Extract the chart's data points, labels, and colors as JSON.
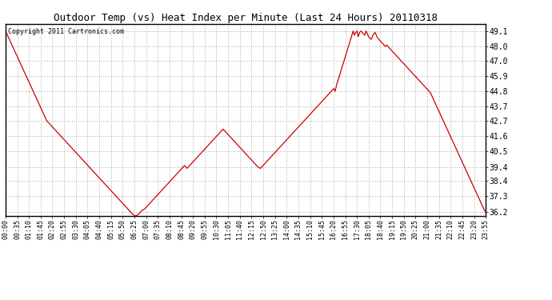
{
  "title": "Outdoor Temp (vs) Heat Index per Minute (Last 24 Hours) 20110318",
  "copyright_text": "Copyright 2011 Cartronics.com",
  "line_color": "#cc0000",
  "background_color": "#ffffff",
  "grid_color": "#aaaaaa",
  "yticks": [
    36.2,
    37.3,
    38.4,
    39.4,
    40.5,
    41.6,
    42.7,
    43.7,
    44.8,
    45.9,
    47.0,
    48.0,
    49.1
  ],
  "xtick_labels": [
    "00:00",
    "00:35",
    "01:10",
    "01:45",
    "02:20",
    "02:55",
    "03:30",
    "04:05",
    "04:40",
    "05:15",
    "05:50",
    "06:25",
    "07:00",
    "07:35",
    "08:10",
    "08:45",
    "09:20",
    "09:55",
    "10:30",
    "11:05",
    "11:40",
    "12:15",
    "12:50",
    "13:25",
    "14:00",
    "14:35",
    "15:10",
    "15:45",
    "16:20",
    "16:55",
    "17:30",
    "18:05",
    "18:40",
    "19:15",
    "19:50",
    "20:25",
    "21:00",
    "21:35",
    "22:10",
    "22:45",
    "23:20",
    "23:55"
  ],
  "ymin": 35.9,
  "ymax": 49.6,
  "data_points": [
    49.1,
    48.9,
    48.7,
    48.5,
    48.3,
    48.1,
    47.9,
    47.7,
    47.5,
    47.3,
    47.1,
    46.9,
    46.7,
    46.5,
    46.3,
    46.1,
    45.9,
    45.7,
    45.5,
    45.3,
    45.1,
    44.9,
    44.7,
    44.5,
    44.3,
    44.1,
    43.9,
    43.7,
    43.5,
    43.3,
    43.1,
    42.9,
    42.7,
    42.6,
    42.5,
    42.4,
    42.3,
    42.2,
    42.1,
    42.0,
    41.9,
    41.8,
    41.7,
    41.6,
    41.5,
    41.4,
    41.3,
    41.2,
    41.1,
    41.0,
    40.9,
    40.8,
    40.7,
    40.6,
    40.5,
    40.4,
    40.3,
    40.2,
    40.1,
    40.0,
    39.9,
    39.8,
    39.7,
    39.6,
    39.5,
    39.4,
    39.3,
    39.2,
    39.1,
    39.0,
    38.9,
    38.8,
    38.7,
    38.6,
    38.5,
    38.4,
    38.3,
    38.2,
    38.1,
    38.0,
    37.9,
    37.8,
    37.7,
    37.6,
    37.5,
    37.4,
    37.3,
    37.2,
    37.1,
    37.0,
    36.9,
    36.8,
    36.7,
    36.6,
    36.5,
    36.4,
    36.3,
    36.2,
    36.1,
    36.0,
    35.95,
    35.9,
    35.95,
    36.0,
    36.1,
    36.2,
    36.3,
    36.35,
    36.4,
    36.5,
    36.6,
    36.7,
    36.8,
    36.9,
    37.0,
    37.1,
    37.2,
    37.3,
    37.4,
    37.5,
    37.6,
    37.7,
    37.8,
    37.9,
    38.0,
    38.1,
    38.2,
    38.3,
    38.4,
    38.5,
    38.6,
    38.7,
    38.8,
    38.9,
    39.0,
    39.1,
    39.2,
    39.3,
    39.4,
    39.5,
    39.4,
    39.3,
    39.4,
    39.5,
    39.6,
    39.7,
    39.8,
    39.9,
    40.0,
    40.1,
    40.2,
    40.3,
    40.4,
    40.5,
    40.6,
    40.7,
    40.8,
    40.9,
    41.0,
    41.1,
    41.2,
    41.3,
    41.4,
    41.5,
    41.6,
    41.7,
    41.8,
    41.9,
    42.0,
    42.1,
    42.0,
    41.9,
    41.8,
    41.7,
    41.6,
    41.5,
    41.4,
    41.3,
    41.2,
    41.1,
    41.0,
    40.9,
    40.8,
    40.7,
    40.6,
    40.5,
    40.4,
    40.3,
    40.2,
    40.1,
    40.0,
    39.9,
    39.8,
    39.7,
    39.6,
    39.5,
    39.4,
    39.35,
    39.3,
    39.4,
    39.5,
    39.6,
    39.7,
    39.8,
    39.9,
    40.0,
    40.1,
    40.2,
    40.3,
    40.4,
    40.5,
    40.6,
    40.7,
    40.8,
    40.9,
    41.0,
    41.1,
    41.2,
    41.3,
    41.4,
    41.5,
    41.6,
    41.7,
    41.8,
    41.9,
    42.0,
    42.1,
    42.2,
    42.3,
    42.4,
    42.5,
    42.6,
    42.7,
    42.8,
    42.9,
    43.0,
    43.1,
    43.2,
    43.3,
    43.4,
    43.5,
    43.6,
    43.7,
    43.8,
    43.9,
    44.0,
    44.1,
    44.2,
    44.3,
    44.4,
    44.5,
    44.6,
    44.7,
    44.8,
    44.9,
    45.0,
    44.8,
    45.2,
    45.5,
    45.8,
    46.1,
    46.4,
    46.7,
    47.0,
    47.3,
    47.6,
    47.9,
    48.2,
    48.5,
    48.8,
    49.1,
    48.8,
    49.0,
    49.1,
    48.7,
    49.0,
    49.1,
    49.0,
    48.9,
    48.8,
    49.1,
    48.9,
    48.7,
    48.6,
    48.5,
    48.7,
    48.9,
    49.0,
    48.8,
    48.6,
    48.5,
    48.4,
    48.3,
    48.2,
    48.1,
    48.0,
    48.1,
    48.0,
    47.9,
    47.8,
    47.7,
    47.6,
    47.5,
    47.4,
    47.3,
    47.2,
    47.1,
    47.0,
    46.9,
    46.8,
    46.7,
    46.6,
    46.5,
    46.4,
    46.3,
    46.2,
    46.1,
    46.0,
    45.9,
    45.8,
    45.7,
    45.6,
    45.5,
    45.4,
    45.3,
    45.2,
    45.1,
    45.0,
    44.9,
    44.8,
    44.7,
    44.5,
    44.3,
    44.1,
    43.9,
    43.7,
    43.5,
    43.3,
    43.1,
    42.9,
    42.7,
    42.5,
    42.3,
    42.1,
    41.9,
    41.7,
    41.5,
    41.3,
    41.1,
    40.9,
    40.7,
    40.5,
    40.3,
    40.1,
    39.9,
    39.7,
    39.5,
    39.3,
    39.1,
    38.9,
    38.7,
    38.5,
    38.3,
    38.1,
    37.9,
    37.7,
    37.5,
    37.3,
    37.1,
    36.9,
    36.7,
    36.5,
    36.3,
    36.2
  ]
}
